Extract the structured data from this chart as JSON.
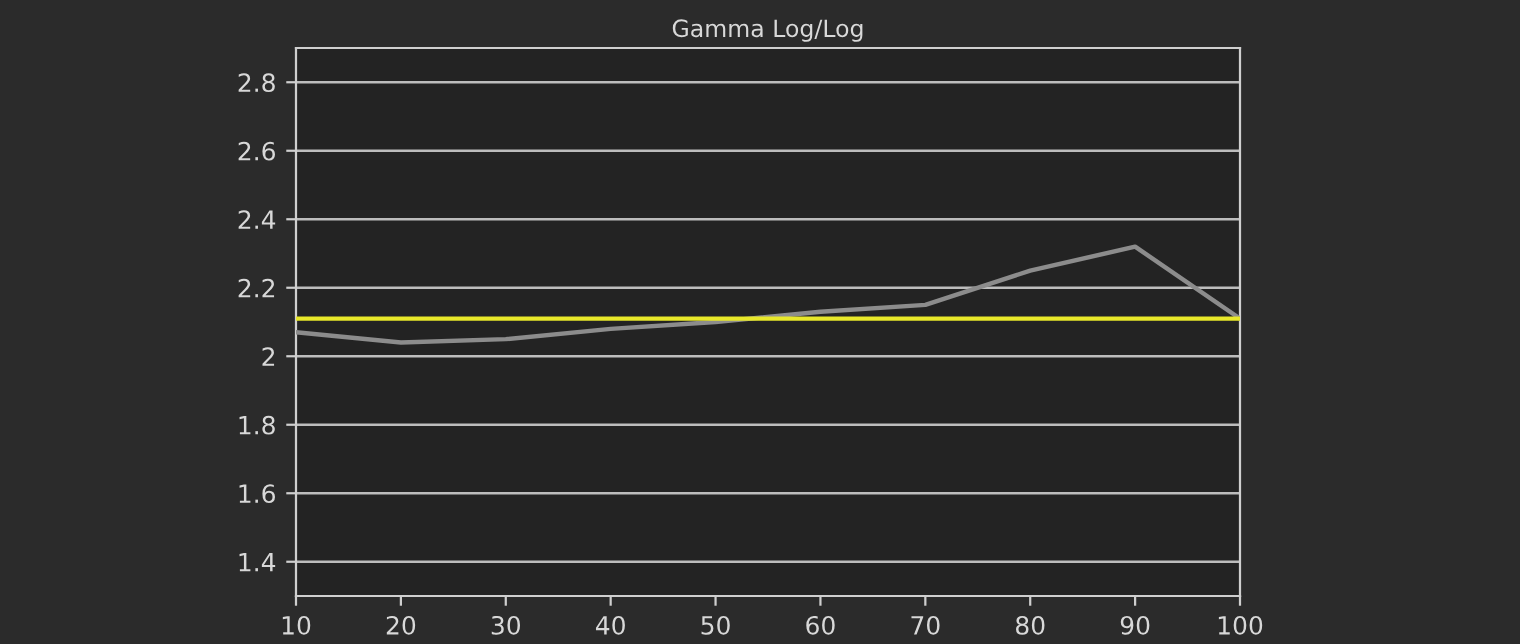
{
  "chart_data": {
    "type": "line",
    "title": "Gamma Log/Log",
    "x": [
      10,
      20,
      30,
      40,
      50,
      60,
      70,
      80,
      90,
      100
    ],
    "series": [
      {
        "color": "#8c8c8c",
        "values": [
          2.07,
          2.04,
          2.05,
          2.08,
          2.1,
          2.13,
          2.15,
          2.25,
          2.32,
          2.11
        ]
      }
    ],
    "xlim": [
      10,
      100
    ],
    "xticks": [
      10,
      20,
      30,
      40,
      50,
      60,
      70,
      80,
      90,
      100
    ],
    "ylim": [
      1.3,
      2.9
    ],
    "yticks": [
      1.4,
      1.6,
      1.8,
      2,
      2.2,
      2.4,
      2.6,
      2.8
    ],
    "ref_lines": [
      {
        "axis": "y",
        "value": 2.11,
        "color": "#e8e82a"
      }
    ],
    "grid": "y",
    "marker": "none",
    "line_style": "solid"
  }
}
